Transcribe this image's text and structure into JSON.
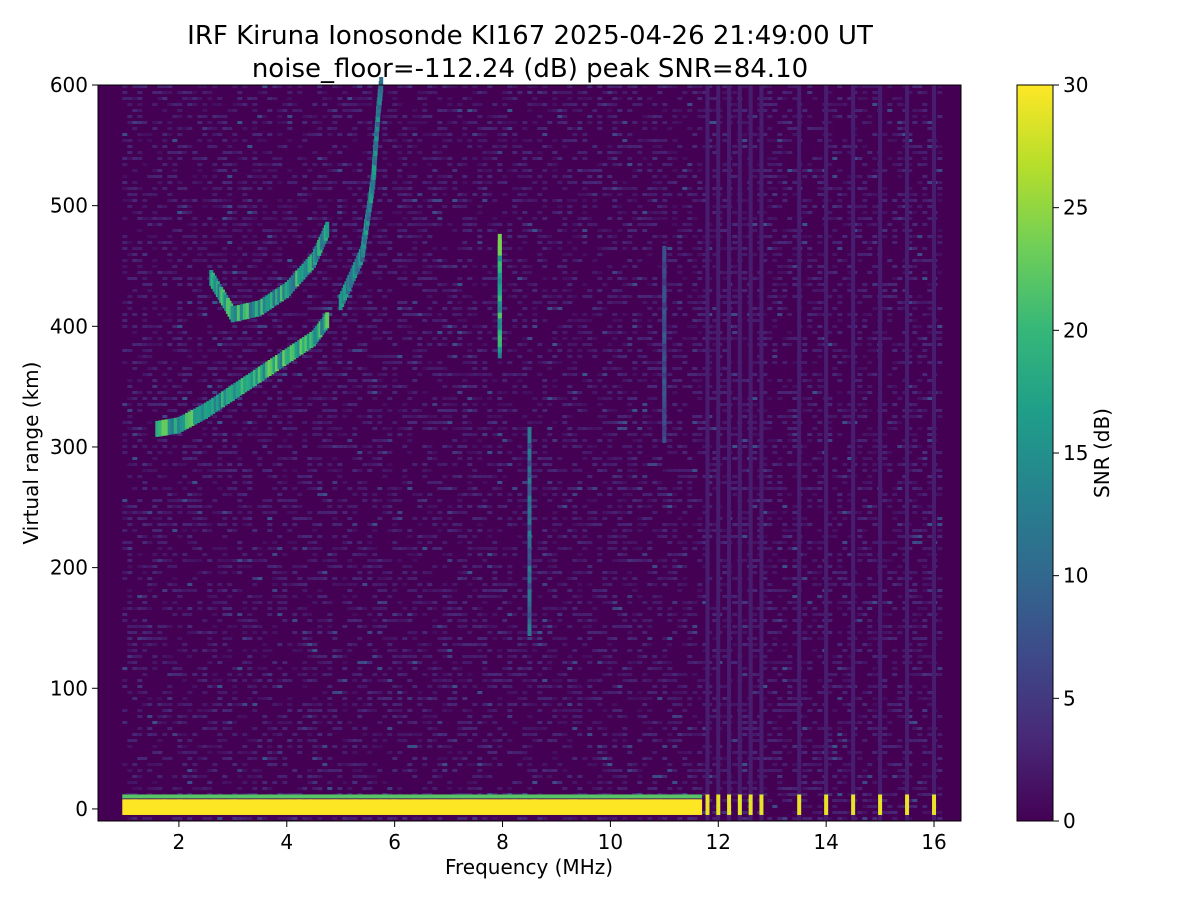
{
  "chart_data": {
    "type": "heatmap",
    "title_line1": "IRF Kiruna Ionosonde KI167 2025-04-26 21:49:00  UT",
    "title_line2": "noise_floor=-112.24 (dB) peak SNR=84.10",
    "xlabel": "Frequency (MHz)",
    "ylabel": "Virtual range (km)",
    "colorbar_label": "SNR (dB)",
    "xlim": [
      0.5,
      16.5
    ],
    "ylim": [
      -10,
      600
    ],
    "clim": [
      0,
      30
    ],
    "x_ticks": [
      2,
      4,
      6,
      8,
      10,
      12,
      14,
      16
    ],
    "y_ticks": [
      0,
      100,
      200,
      300,
      400,
      500,
      600
    ],
    "c_ticks": [
      0,
      5,
      10,
      15,
      20,
      25,
      30
    ],
    "colormap": "viridis",
    "colormap_stops": [
      "#440154",
      "#482878",
      "#3e4989",
      "#31688e",
      "#26828e",
      "#1f9e89",
      "#35b779",
      "#6ece58",
      "#b5de2b",
      "#fde725"
    ],
    "data_frequency_range_mhz": [
      0.95,
      16.1
    ],
    "ground_echo_band_km": [
      -5,
      8
    ],
    "discrete_frequencies_mhz": [
      11.8,
      12.0,
      12.2,
      12.4,
      12.6,
      12.8,
      13.5,
      14.0,
      14.5,
      15.0,
      15.5,
      16.0
    ],
    "echo_traces": [
      {
        "name": "F-layer trace (low)",
        "points": [
          [
            1.6,
            315
          ],
          [
            2.0,
            318
          ],
          [
            2.5,
            330
          ],
          [
            3.0,
            345
          ],
          [
            3.5,
            360
          ],
          [
            4.0,
            375
          ],
          [
            4.5,
            390
          ],
          [
            4.75,
            405
          ]
        ],
        "snr": 22
      },
      {
        "name": "F-layer trace (upper)",
        "points": [
          [
            2.6,
            440
          ],
          [
            3.0,
            410
          ],
          [
            3.5,
            415
          ],
          [
            4.0,
            430
          ],
          [
            4.5,
            455
          ],
          [
            4.75,
            480
          ]
        ],
        "snr": 20
      },
      {
        "name": "F-layer trace (high)",
        "points": [
          [
            5.0,
            420
          ],
          [
            5.4,
            460
          ],
          [
            5.6,
            520
          ],
          [
            5.7,
            580
          ],
          [
            5.75,
            600
          ]
        ],
        "snr": 16
      },
      {
        "name": "streak",
        "points": [
          [
            7.95,
            380
          ],
          [
            7.95,
            470
          ]
        ],
        "snr": 22
      },
      {
        "name": "streak",
        "points": [
          [
            8.5,
            150
          ],
          [
            8.5,
            310
          ]
        ],
        "snr": 12
      },
      {
        "name": "streak",
        "points": [
          [
            11.0,
            310
          ],
          [
            11.0,
            460
          ]
        ],
        "snr": 8
      }
    ]
  }
}
